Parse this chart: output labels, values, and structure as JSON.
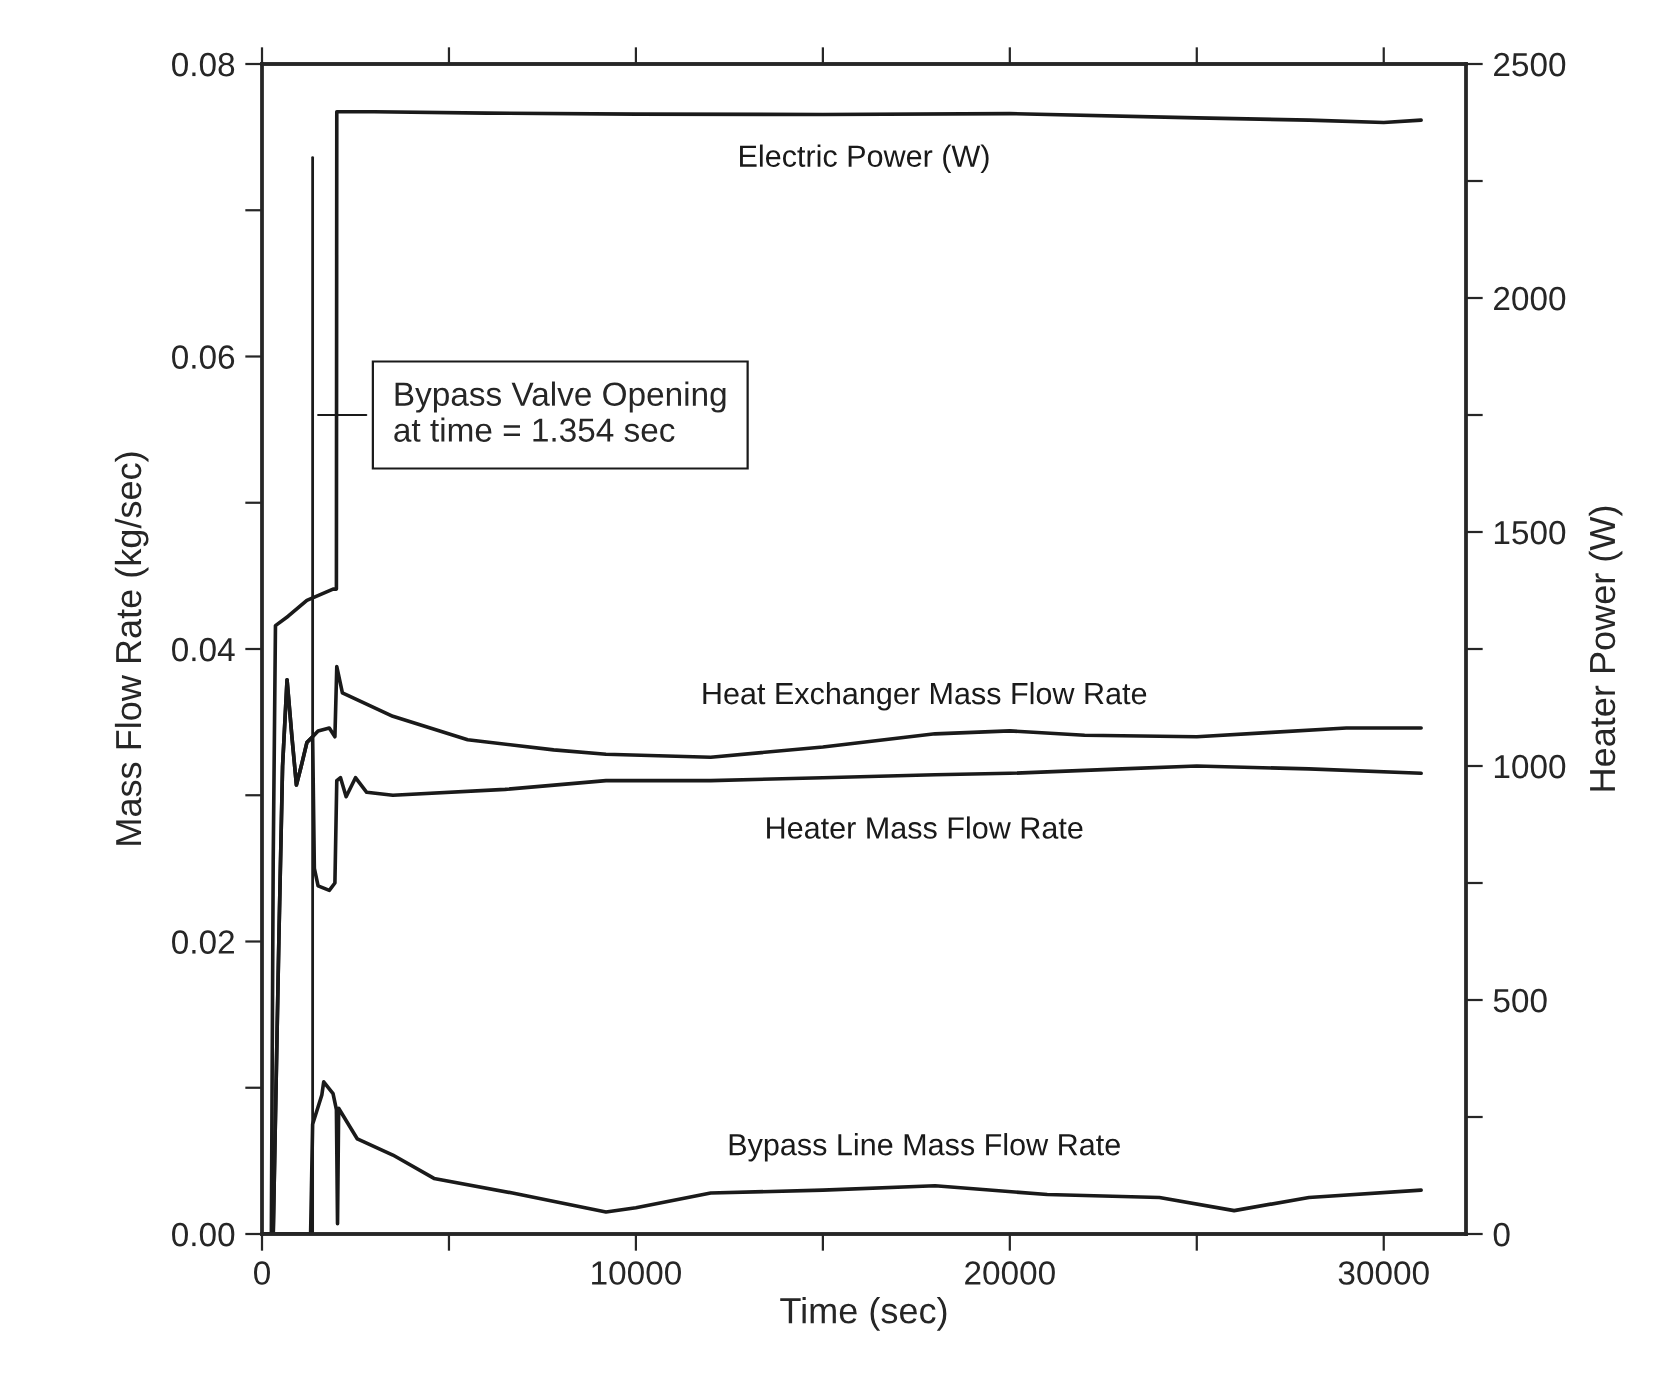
{
  "chart_data": {
    "type": "line",
    "xlabel": "Time (sec)",
    "ylabel": "Mass Flow Rate (kg/sec)",
    "y2label": "Heater Power (W)",
    "xlim": [
      0,
      32200
    ],
    "xticks": [
      0,
      {
        "value": 5000,
        "label": null
      },
      10000,
      {
        "value": 15000,
        "label": null
      },
      20000,
      {
        "value": 25000,
        "label": null
      },
      30000
    ],
    "ylim": [
      0,
      0.08
    ],
    "yticks": [
      {
        "value": 0,
        "label": "0.00"
      },
      {
        "value": 0.01,
        "label": null
      },
      {
        "value": 0.02,
        "label": "0.02"
      },
      {
        "value": 0.03,
        "label": null
      },
      {
        "value": 0.04,
        "label": "0.04"
      },
      {
        "value": 0.05,
        "label": null
      },
      {
        "value": 0.06,
        "label": "0.06"
      },
      {
        "value": 0.07,
        "label": null
      },
      {
        "value": 0.08,
        "label": "0.08"
      }
    ],
    "y2lim": [
      0,
      2500
    ],
    "y2ticks": [
      0,
      {
        "value": 250,
        "label": null
      },
      500,
      {
        "value": 750,
        "label": null
      },
      1000,
      {
        "value": 1250,
        "label": null
      },
      1500,
      {
        "value": 1750,
        "label": null
      },
      2000,
      {
        "value": 2250,
        "label": null
      },
      2500
    ],
    "grid": false,
    "legend": false,
    "marker": "none",
    "line_style": "solid",
    "series": [
      {
        "name": "Electric Power (W)",
        "color": "#1a1a1a",
        "axis": "y2",
        "x": [
          0,
          250,
          300,
          360,
          700,
          1200,
          1900,
          1990,
          2000,
          3000,
          6000,
          10000,
          15000,
          20000,
          25000,
          28000,
          30000,
          31000
        ],
        "values": [
          0,
          0,
          800,
          1300,
          1320,
          1354,
          1378,
          1378,
          2398,
          2398,
          2395,
          2393,
          2392,
          2394,
          2385,
          2380,
          2375,
          2380
        ]
      },
      {
        "name": "Heat Exchanger Mass Flow Rate",
        "color": "#1a1a1a",
        "x": [
          0,
          300,
          450,
          550,
          670,
          800,
          920,
          1050,
          1200,
          1354,
          1500,
          1800,
          1950,
          2000,
          2150,
          3500,
          5500,
          7800,
          9200,
          12000,
          15000,
          18000,
          20000,
          22000,
          25000,
          27000,
          29000,
          31000
        ],
        "values": [
          0,
          0,
          0.02,
          0.032,
          0.0379,
          0.034,
          0.0307,
          0.032,
          0.0336,
          0.034,
          0.0344,
          0.0346,
          0.034,
          0.0388,
          0.037,
          0.0354,
          0.0338,
          0.0331,
          0.0328,
          0.0326,
          0.0333,
          0.0342,
          0.0344,
          0.0341,
          0.034,
          0.0343,
          0.0346,
          0.0346
        ]
      },
      {
        "name": "Heater Mass Flow Rate",
        "color": "#1a1a1a",
        "x": [
          0,
          300,
          450,
          550,
          670,
          800,
          920,
          1050,
          1200,
          1354,
          1400,
          1500,
          1800,
          1950,
          2000,
          2100,
          2250,
          2500,
          2800,
          3500,
          6500,
          9200,
          12000,
          15000,
          18000,
          20000,
          23000,
          25000,
          28000,
          31000
        ],
        "values": [
          0,
          0,
          0.02,
          0.032,
          0.0379,
          0.034,
          0.0307,
          0.032,
          0.0336,
          0.034,
          0.025,
          0.0238,
          0.0235,
          0.024,
          0.031,
          0.0312,
          0.0299,
          0.0312,
          0.0302,
          0.03,
          0.0304,
          0.031,
          0.031,
          0.0312,
          0.0314,
          0.0315,
          0.0318,
          0.032,
          0.0318,
          0.0315
        ]
      },
      {
        "name": "Bypass Line Mass Flow Rate",
        "color": "#1a1a1a",
        "x": [
          0,
          1300,
          1354,
          1600,
          1650,
          1900,
          1990,
          2020,
          2050,
          2550,
          3500,
          4600,
          6700,
          9200,
          10000,
          12000,
          15000,
          18000,
          21000,
          24000,
          26000,
          28000,
          31000
        ],
        "values": [
          0,
          0,
          0.0075,
          0.0095,
          0.0104,
          0.0096,
          0.0085,
          0.0007,
          0.0086,
          0.0065,
          0.0054,
          0.0038,
          0.0028,
          0.0015,
          0.0018,
          0.0028,
          0.003,
          0.0033,
          0.0027,
          0.0025,
          0.0016,
          0.0025,
          0.003
        ]
      }
    ],
    "ref_lines": [
      {
        "axis": "x",
        "value": 1354,
        "color": "#1a1a1a",
        "line_style": "solid"
      }
    ],
    "annotations": [
      {
        "text": "Bypass Valve Opening\nat time = 1.354 sec",
        "x": 1354,
        "y": 0.056
      }
    ]
  }
}
